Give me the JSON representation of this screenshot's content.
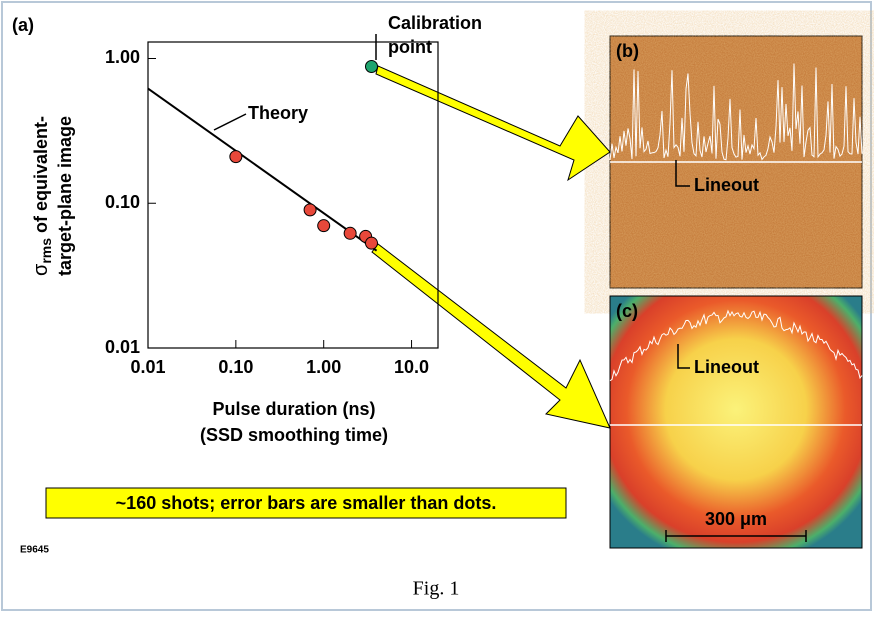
{
  "chart_data": {
    "type": "scatter",
    "panel_label": "(a)",
    "ylabel": {
      "symbol": "σ",
      "subscript": "rms",
      "line1_rest": " of equivalent-",
      "line2": "target-plane image"
    },
    "xlabel": [
      "Pulse duration (ns)",
      "(SSD smoothing time)"
    ],
    "xscale": "log",
    "yscale": "log",
    "xlim": [
      0.01,
      20
    ],
    "ylim": [
      0.01,
      1.3
    ],
    "xticks": [
      {
        "value": 0.01,
        "label": "0.01"
      },
      {
        "value": 0.1,
        "label": "0.10"
      },
      {
        "value": 1,
        "label": "1.00"
      },
      {
        "value": 10,
        "label": "10.0"
      }
    ],
    "yticks": [
      {
        "value": 0.01,
        "label": "0.01"
      },
      {
        "value": 0.1,
        "label": "0.10"
      },
      {
        "value": 1,
        "label": "1.00"
      }
    ],
    "series": [
      {
        "marker": "line",
        "color": "#000000",
        "x": [
          0.01,
          4
        ],
        "values": [
          0.62,
          0.047
        ]
      },
      {
        "marker": "circle",
        "color": "#e8483a",
        "x": [
          0.1,
          0.7,
          1.0,
          2.0,
          3.0,
          3.5
        ],
        "values": [
          0.21,
          0.09,
          0.07,
          0.062,
          0.059,
          0.053
        ]
      },
      {
        "marker": "circle",
        "color": "#1fa46e",
        "x": [
          3.5
        ],
        "values": [
          0.88
        ]
      }
    ],
    "annotations": {
      "theory": "Theory",
      "calibration": [
        "Calibration",
        "point"
      ],
      "note": "~160 shots; error bars are smaller than dots.",
      "code": "E9645"
    },
    "panels": {
      "b": {
        "label": "(b)",
        "lineout": "Lineout"
      },
      "c": {
        "label": "(c)",
        "lineout": "Lineout",
        "scale_bar": "300 μm"
      }
    },
    "caption": "Fig. 1"
  }
}
